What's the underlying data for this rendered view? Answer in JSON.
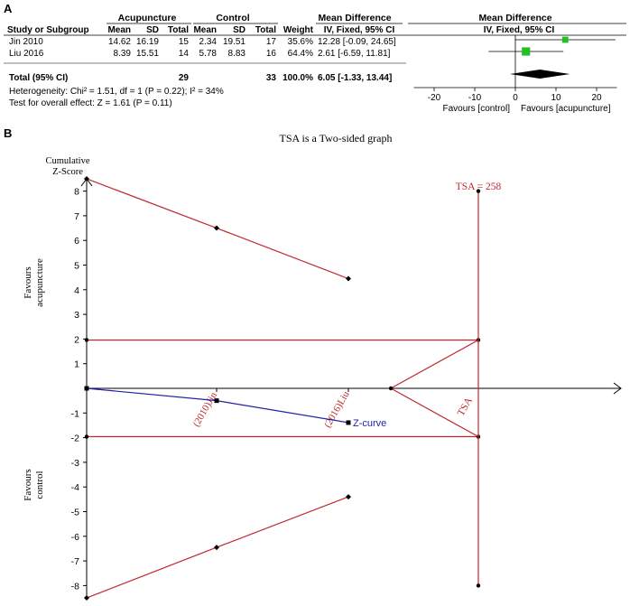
{
  "panel_a": {
    "label": "A",
    "groups": {
      "experimental": "Acupuncture",
      "control": "Control",
      "effect": "Mean Difference",
      "effect_plot": "Mean Difference"
    },
    "headers": {
      "study": "Study or Subgroup",
      "mean_e": "Mean",
      "sd_e": "SD",
      "total_e": "Total",
      "mean_c": "Mean",
      "sd_c": "SD",
      "total_c": "Total",
      "weight": "Weight",
      "method": "IV, Fixed, 95% CI",
      "method_plot": "IV, Fixed, 95% CI"
    },
    "rows": [
      {
        "study": "Jin 2010",
        "mean_e": "14.62",
        "sd_e": "16.19",
        "total_e": "15",
        "mean_c": "2.34",
        "sd_c": "19.51",
        "total_c": "17",
        "weight": "35.6%",
        "ci": "12.28 [-0.09, 24.65]"
      },
      {
        "study": "Liu 2016",
        "mean_e": "8.39",
        "sd_e": "15.51",
        "total_e": "14",
        "mean_c": "5.78",
        "sd_c": "8.83",
        "total_c": "16",
        "weight": "64.4%",
        "ci": "2.61 [-6.59, 11.81]"
      }
    ],
    "total": {
      "label": "Total (95% CI)",
      "total_e": "29",
      "total_c": "33",
      "weight": "100.0%",
      "ci": "6.05 [-1.33, 13.44]"
    },
    "heterogeneity": "Heterogeneity: Chi² = 1.51, df = 1 (P = 0.22); I² = 34%",
    "overall_effect": "Test for overall effect: Z = 1.61 (P = 0.11)",
    "favours_left": "Favours [control]",
    "favours_right": "Favours [acupuncture]",
    "square_color": "#22c022"
  },
  "chart_data": [
    {
      "type": "scatter",
      "subtype": "forest",
      "title": "",
      "xlim": [
        -25,
        25
      ],
      "xticks": [
        "-20",
        "-10",
        "0",
        "10",
        "20"
      ],
      "studies": [
        {
          "name": "Jin 2010",
          "estimate": 12.28,
          "lower": -0.09,
          "upper": 24.65,
          "weight": 35.6
        },
        {
          "name": "Liu 2016",
          "estimate": 2.61,
          "lower": -6.59,
          "upper": 11.81,
          "weight": 64.4
        }
      ],
      "pooled": {
        "estimate": 6.05,
        "lower": -1.33,
        "upper": 13.44
      },
      "xlabel_left": "Favours [control]",
      "xlabel_right": "Favours [acupuncture]"
    },
    {
      "type": "line",
      "subtype": "trial-sequential-analysis",
      "panel_label": "B",
      "title": "TSA is a Two-sided graph",
      "ylabel_line1": "Cumulative",
      "ylabel_line2": "Z-Score",
      "y_favour_top_1": "Favours",
      "y_favour_top_2": "acupuncture",
      "y_favour_bottom_1": "Favours",
      "y_favour_bottom_2": "control",
      "ylim": [
        -8.5,
        8.5
      ],
      "yticks": [
        "8",
        "7",
        "6",
        "5",
        "4",
        "3",
        "2",
        "1",
        "-1",
        "-2",
        "-3",
        "-4",
        "-5",
        "-6",
        "-7",
        "-8"
      ],
      "x_positions": [
        0,
        1,
        2
      ],
      "x_labels": [
        "",
        "(2010)Jin",
        "(2016)Liu"
      ],
      "required_information_size": 258,
      "tsa_label": "TSA = 258",
      "tsa_axis_label": "TSA",
      "series": [
        {
          "name": "Z-curve",
          "color": "#1f1fa8",
          "points": [
            [
              0,
              0
            ],
            [
              1,
              -0.5
            ],
            [
              2,
              -1.39
            ]
          ]
        },
        {
          "name": "",
          "color": "#c0272d",
          "points": [
            [
              0,
              8.5
            ],
            [
              1,
              6.5
            ],
            [
              2,
              4.45
            ]
          ]
        },
        {
          "name": "",
          "color": "#c0272d",
          "points": [
            [
              0,
              -8.5
            ],
            [
              1,
              -6.45
            ],
            [
              2,
              -4.4
            ]
          ]
        }
      ],
      "conventional_boundaries": [
        1.96,
        -1.96
      ],
      "futility_wedge": {
        "apex_x": 2.35,
        "end_x": 3.2,
        "upper": 1.96,
        "lower": -1.96
      },
      "tsa_x": 3.2,
      "tsa_range": [
        -8,
        8
      ],
      "boundary_color": "#c0272d"
    }
  ]
}
